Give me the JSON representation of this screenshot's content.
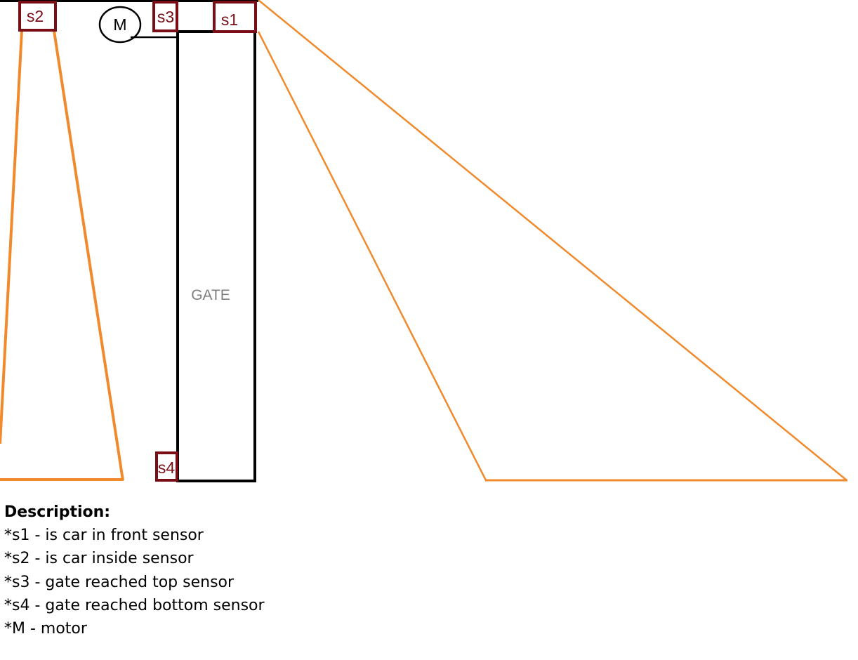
{
  "diagram": {
    "gate_label": "GATE",
    "motor_label": "M",
    "sensors": {
      "s1": "s1",
      "s2": "s2",
      "s3": "s3",
      "s4": "s4"
    },
    "colors": {
      "sensor_box": "#7a0e17",
      "beam": "#f08a2c",
      "gate_outline": "#000000",
      "gate_label": "#7f7f7f"
    }
  },
  "description": {
    "title": "Description:",
    "items": [
      "*s1 - is car in front sensor",
      "*s2 - is car inside sensor",
      "*s3 - gate reached top sensor",
      "*s4 - gate reached bottom sensor",
      "*M - motor"
    ]
  }
}
